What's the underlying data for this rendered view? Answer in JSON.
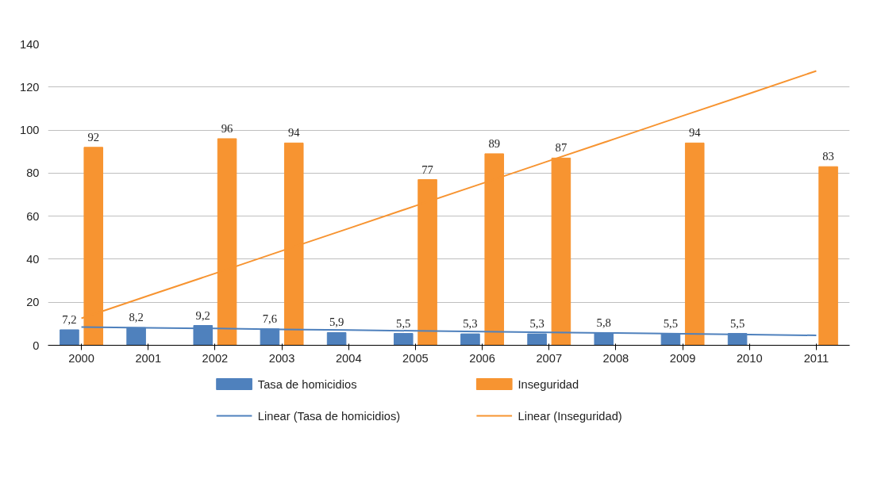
{
  "chart_data": {
    "type": "bar",
    "categories": [
      "2000",
      "2001",
      "2002",
      "2003",
      "2004",
      "2005",
      "2006",
      "2007",
      "2008",
      "2009",
      "2010",
      "2011"
    ],
    "series": [
      {
        "name": "Tasa de homicidios",
        "color": "#4f81bd",
        "values": [
          7.2,
          8.2,
          9.2,
          7.6,
          5.9,
          5.5,
          5.3,
          5.3,
          5.8,
          5.5,
          5.5,
          null
        ],
        "value_labels": [
          "7,2",
          "8,2",
          "9,2",
          "7,6",
          "5,9",
          "5,5",
          "5,3",
          "5,3",
          "5,8",
          "5,5",
          "5,5",
          null
        ]
      },
      {
        "name": "Inseguridad",
        "color": "#f79431",
        "values": [
          92,
          null,
          96,
          94,
          null,
          77,
          89,
          87,
          null,
          94,
          null,
          83
        ],
        "value_labels": [
          "92",
          null,
          "96",
          "94",
          null,
          "77",
          "89",
          "87",
          null,
          "94",
          null,
          "83"
        ]
      },
      {
        "name": "Linear (Tasa de homicidios)",
        "type": "line",
        "color": "#4f81bd",
        "values": [
          8.5,
          8.1,
          7.8,
          7.4,
          7.1,
          6.7,
          6.4,
          6.0,
          5.7,
          5.3,
          5.0,
          4.6
        ]
      },
      {
        "name": "Linear (Inseguridad)",
        "type": "line",
        "color": "#f79431",
        "values": [
          12.5,
          23,
          33.4,
          43.9,
          54.3,
          64.8,
          75.2,
          85.7,
          96.1,
          106.6,
          117,
          127.5
        ]
      }
    ],
    "ylim": [
      0,
      140
    ],
    "yticks": [
      0,
      20,
      40,
      60,
      80,
      100,
      120,
      140
    ],
    "grid": "y",
    "legend": "bottom"
  }
}
